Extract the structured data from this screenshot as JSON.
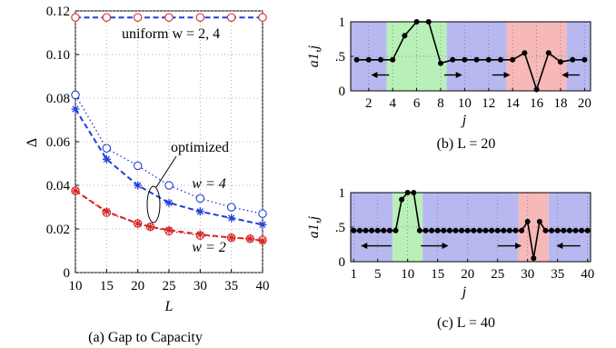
{
  "chart_data": [
    {
      "type": "line",
      "caption": "(a) Gap to Capacity",
      "xlabel": "L",
      "ylabel": "Δ",
      "xlim": [
        10,
        40
      ],
      "ylim": [
        0,
        0.12
      ],
      "x_ticks": [
        "10",
        "15",
        "20",
        "25",
        "30",
        "35",
        "40"
      ],
      "y_ticks": [
        "0",
        "0.02",
        "0.04",
        "0.06",
        "0.08",
        "0.10",
        "0.12"
      ],
      "grid": "dotted",
      "x": [
        10,
        15,
        20,
        25,
        30,
        35,
        40
      ],
      "series": [
        {
          "key": "uniform",
          "values": [
            0.117,
            0.117,
            0.117,
            0.117,
            0.117,
            0.117,
            0.117
          ],
          "color": "#d62728",
          "line_color": "#1f3fd8",
          "marker": "circle",
          "style": "dashed"
        },
        {
          "key": "w4_open",
          "values": [
            0.0815,
            0.057,
            0.049,
            0.04,
            0.034,
            0.03,
            0.027
          ],
          "color": "#1f3fd8",
          "marker": "circle",
          "style": "dotted"
        },
        {
          "key": "w4_star",
          "x": [
            10,
            15,
            20,
            25,
            30,
            35,
            40
          ],
          "values": [
            0.075,
            0.052,
            0.04,
            0.032,
            0.028,
            0.025,
            0.022
          ],
          "color": "#1f3fd8",
          "marker": "star",
          "style": "dashed"
        },
        {
          "key": "w2_open",
          "x": [
            10,
            15,
            20,
            22,
            25,
            30,
            35,
            38,
            40
          ],
          "values": [
            0.0375,
            0.0275,
            0.0225,
            0.021,
            0.019,
            0.017,
            0.016,
            0.0155,
            0.015
          ],
          "color": "#d62728",
          "marker": "circle",
          "style": "dotted"
        },
        {
          "key": "w2_star",
          "x": [
            10,
            15,
            20,
            22,
            25,
            30,
            35,
            38,
            40
          ],
          "values": [
            0.0375,
            0.028,
            0.0225,
            0.021,
            0.0195,
            0.0175,
            0.016,
            0.0155,
            0.0145
          ],
          "color": "#d62728",
          "marker": "star",
          "style": "dashed"
        }
      ],
      "annotations": {
        "uniform": "uniform w = 2, 4",
        "optimized": "optimized",
        "w4": "w = 4",
        "w2": "w = 2"
      }
    },
    {
      "type": "line",
      "caption": "(b) L = 20",
      "xlabel": "j",
      "ylabel": "a1,j",
      "xlim": [
        1,
        20
      ],
      "ylim": [
        0,
        1
      ],
      "x_ticks": [
        "2",
        "4",
        "6",
        "8",
        "10",
        "12",
        "14",
        "16",
        "18",
        "20"
      ],
      "y_ticks": [
        "0",
        ".5",
        "1"
      ],
      "bands": [
        {
          "from": 0.5,
          "to": 3.5,
          "color": "#b8b8f0"
        },
        {
          "from": 3.5,
          "to": 8.5,
          "color": "#b8f0b8"
        },
        {
          "from": 8.5,
          "to": 13.5,
          "color": "#b8b8f0"
        },
        {
          "from": 13.5,
          "to": 18.5,
          "color": "#f7b8b8"
        },
        {
          "from": 18.5,
          "to": 20.5,
          "color": "#b8b8f0"
        }
      ],
      "x": [
        1,
        2,
        3,
        4,
        5,
        6,
        7,
        8,
        9,
        10,
        11,
        12,
        13,
        14,
        15,
        16,
        17,
        18,
        19,
        20
      ],
      "values": [
        0.45,
        0.45,
        0.45,
        0.45,
        0.8,
        1.0,
        1.0,
        0.4,
        0.45,
        0.45,
        0.45,
        0.45,
        0.45,
        0.45,
        0.55,
        0.02,
        0.55,
        0.42,
        0.45,
        0.45
      ],
      "arrows": [
        {
          "x1": 3.7,
          "x2": 2.2
        },
        {
          "x1": 8.3,
          "x2": 9.8
        },
        {
          "x1": 12.3,
          "x2": 13.8
        },
        {
          "x1": 19.6,
          "x2": 18.1
        }
      ]
    },
    {
      "type": "line",
      "caption": "(c) L = 40",
      "xlabel": "j",
      "ylabel": "a1,j",
      "xlim": [
        1,
        40
      ],
      "ylim": [
        0,
        1
      ],
      "x_ticks": [
        "1",
        "5",
        "10",
        "15",
        "20",
        "25",
        "30",
        "35",
        "40"
      ],
      "y_ticks": [
        "0",
        ".5",
        "1"
      ],
      "bands": [
        {
          "from": 0.5,
          "to": 7.5,
          "color": "#b8b8f0"
        },
        {
          "from": 7.5,
          "to": 12.5,
          "color": "#b8f0b8"
        },
        {
          "from": 12.5,
          "to": 28.5,
          "color": "#b8b8f0"
        },
        {
          "from": 28.5,
          "to": 33.5,
          "color": "#f7b8b8"
        },
        {
          "from": 33.5,
          "to": 40.5,
          "color": "#b8b8f0"
        }
      ],
      "x": [
        1,
        2,
        3,
        4,
        5,
        6,
        7,
        8,
        9,
        10,
        11,
        12,
        13,
        14,
        15,
        16,
        17,
        18,
        19,
        20,
        21,
        22,
        23,
        24,
        25,
        26,
        27,
        28,
        29,
        30,
        31,
        32,
        33,
        34,
        35,
        36,
        37,
        38,
        39,
        40
      ],
      "values": [
        0.45,
        0.45,
        0.45,
        0.45,
        0.45,
        0.45,
        0.45,
        0.45,
        0.9,
        1.0,
        1.0,
        0.45,
        0.45,
        0.45,
        0.45,
        0.45,
        0.45,
        0.45,
        0.45,
        0.45,
        0.45,
        0.45,
        0.45,
        0.45,
        0.45,
        0.45,
        0.45,
        0.45,
        0.45,
        0.58,
        0.05,
        0.58,
        0.45,
        0.45,
        0.45,
        0.45,
        0.45,
        0.45,
        0.45,
        0.45
      ],
      "arrows": [
        {
          "x1": 7.3,
          "x2": 2.2
        },
        {
          "x1": 12.2,
          "x2": 16.8
        },
        {
          "x1": 25.0,
          "x2": 29.0
        },
        {
          "x1": 38.8,
          "x2": 34.8
        }
      ]
    }
  ]
}
